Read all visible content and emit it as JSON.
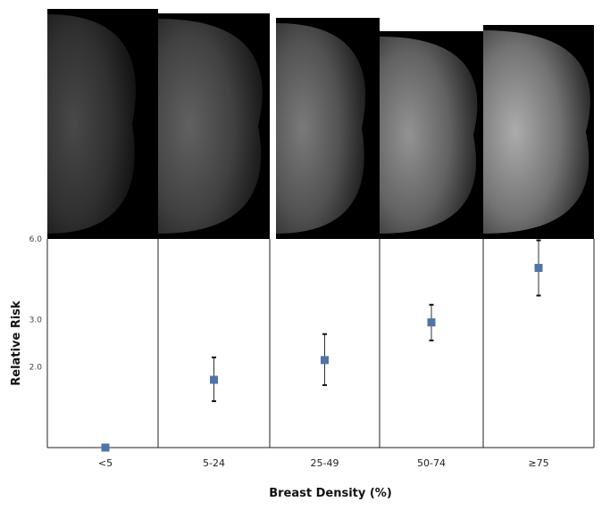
{
  "chart_data": {
    "type": "scatter",
    "title": "",
    "xlabel": "Breast Density (%)",
    "ylabel": "Relative Risk",
    "yscale": "log",
    "ylim": [
      1.0,
      6.0
    ],
    "yticks": [
      {
        "value": 6.0,
        "label": "6.0"
      },
      {
        "value": 3.0,
        "label": "3.0"
      },
      {
        "value": 2.0,
        "label": "2.0"
      }
    ],
    "categories": [
      "<5",
      "5-24",
      "25-49",
      "50-74",
      "≥75"
    ],
    "values": [
      1.0,
      1.79,
      2.12,
      2.93,
      4.68
    ],
    "error_low": [
      1.0,
      1.49,
      1.71,
      2.51,
      3.69
    ],
    "error_high": [
      1.0,
      2.17,
      2.65,
      3.41,
      5.93
    ],
    "marker": "square",
    "marker_color": "#4f74a8",
    "grid": false,
    "panels_above": "mammogram images, one per density category"
  }
}
